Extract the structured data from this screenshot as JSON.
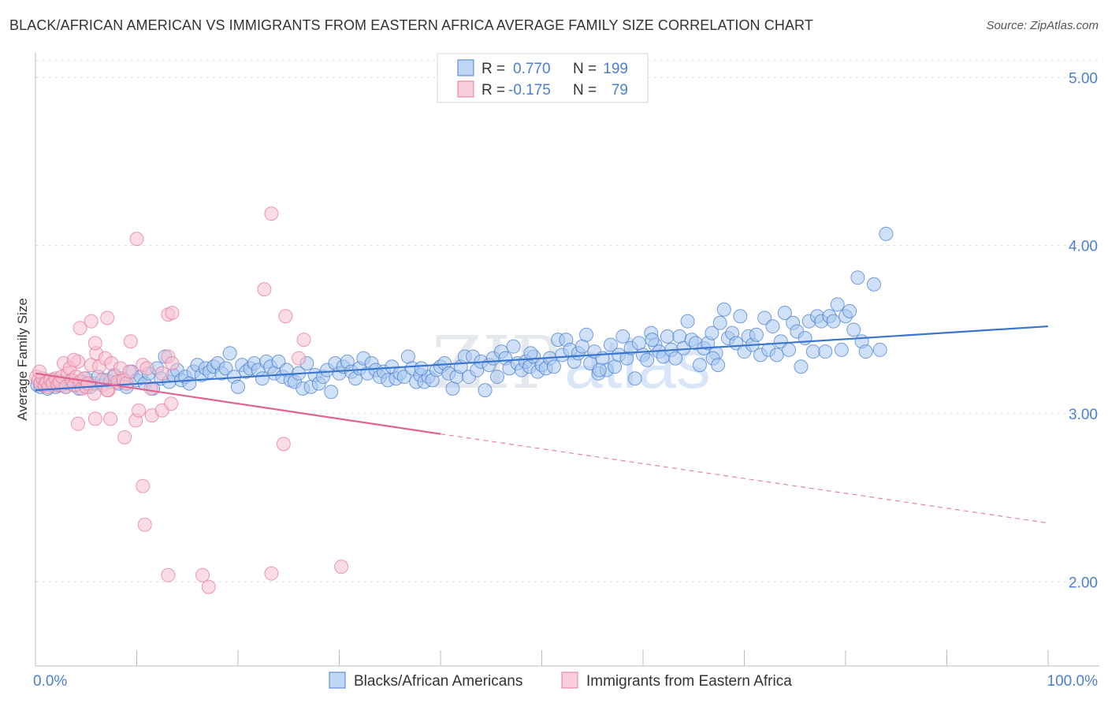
{
  "title": "BLACK/AFRICAN AMERICAN VS IMMIGRANTS FROM EASTERN AFRICA AVERAGE FAMILY SIZE CORRELATION CHART",
  "source": "Source: ZipAtlas.com",
  "watermark": {
    "zip": "ZIP",
    "atlas": "atlas"
  },
  "colors": {
    "blue": "#4a7fd0",
    "blue_fill": "#a9c8f0",
    "blue_line": "#3a76cf",
    "pink": "#e67a9e",
    "pink_fill": "#f6bfd0",
    "pink_line": "#e0648f",
    "grid": "#dddddd",
    "axis": "#bbbbbb"
  },
  "legend": {
    "rows": [
      {
        "r_label": "R =",
        "r_value": "0.770",
        "n_label": "N =",
        "n_value": "199"
      },
      {
        "r_label": "R =",
        "r_value": "-0.175",
        "n_label": "N =",
        "n_value": "79"
      }
    ]
  },
  "chart_data": {
    "type": "scatter",
    "xlabel": "",
    "ylabel": "Average Family Size",
    "xlim": [
      0,
      100
    ],
    "ylim": [
      1.5,
      5.1
    ],
    "x_tick_labels": [
      "0.0%",
      "100.0%"
    ],
    "y_ticks": [
      2.0,
      3.0,
      4.0,
      5.0
    ],
    "y_tick_labels": [
      "2.00",
      "3.00",
      "4.00",
      "5.00"
    ],
    "grid": "horizontal dashed",
    "legend_position": "top-center",
    "series": [
      {
        "name": "Blacks/African Americans",
        "color": "blue",
        "trend": {
          "x": [
            0,
            100
          ],
          "y": [
            3.14,
            3.52
          ],
          "style": "solid"
        },
        "points": [
          [
            0.2,
            3.17
          ],
          [
            0.5,
            3.16
          ],
          [
            0.8,
            3.18
          ],
          [
            1.0,
            3.19
          ],
          [
            1.2,
            3.15
          ],
          [
            1.5,
            3.17
          ],
          [
            1.8,
            3.2
          ],
          [
            2.0,
            3.16
          ],
          [
            2.3,
            3.18
          ],
          [
            2.5,
            3.17
          ],
          [
            2.8,
            3.19
          ],
          [
            3.0,
            3.16
          ],
          [
            3.3,
            3.18
          ],
          [
            3.6,
            3.2
          ],
          [
            4.0,
            3.17
          ],
          [
            4.3,
            3.15
          ],
          [
            4.7,
            3.19
          ],
          [
            5.0,
            3.21
          ],
          [
            5.4,
            3.16
          ],
          [
            5.8,
            3.18
          ],
          [
            6.2,
            3.22
          ],
          [
            6.6,
            3.17
          ],
          [
            7.0,
            3.2
          ],
          [
            7.4,
            3.19
          ],
          [
            7.8,
            3.23
          ],
          [
            8.2,
            3.18
          ],
          [
            8.6,
            3.21
          ],
          [
            9.0,
            3.16
          ],
          [
            9.5,
            3.25
          ],
          [
            10.0,
            3.2
          ],
          [
            10.4,
            3.22
          ],
          [
            10.8,
            3.18
          ],
          [
            11.2,
            3.24
          ],
          [
            11.6,
            3.15
          ],
          [
            12.0,
            3.27
          ],
          [
            12.4,
            3.21
          ],
          [
            12.8,
            3.34
          ],
          [
            13.2,
            3.19
          ],
          [
            13.6,
            3.23
          ],
          [
            14.0,
            3.26
          ],
          [
            14.4,
            3.2
          ],
          [
            14.8,
            3.22
          ],
          [
            15.2,
            3.18
          ],
          [
            15.6,
            3.25
          ],
          [
            16.0,
            3.29
          ],
          [
            16.4,
            3.23
          ],
          [
            16.8,
            3.27
          ],
          [
            17.2,
            3.25
          ],
          [
            17.6,
            3.28
          ],
          [
            18.0,
            3.3
          ],
          [
            18.4,
            3.24
          ],
          [
            18.8,
            3.27
          ],
          [
            19.2,
            3.36
          ],
          [
            19.6,
            3.22
          ],
          [
            20.0,
            3.16
          ],
          [
            20.4,
            3.29
          ],
          [
            20.8,
            3.25
          ],
          [
            21.2,
            3.27
          ],
          [
            21.6,
            3.3
          ],
          [
            22.0,
            3.26
          ],
          [
            22.4,
            3.21
          ],
          [
            22.8,
            3.31
          ],
          [
            23.2,
            3.28
          ],
          [
            23.6,
            3.24
          ],
          [
            24.0,
            3.31
          ],
          [
            24.4,
            3.22
          ],
          [
            24.8,
            3.26
          ],
          [
            25.2,
            3.2
          ],
          [
            25.6,
            3.19
          ],
          [
            26.0,
            3.24
          ],
          [
            26.4,
            3.15
          ],
          [
            26.8,
            3.3
          ],
          [
            27.2,
            3.16
          ],
          [
            27.6,
            3.23
          ],
          [
            28.0,
            3.18
          ],
          [
            28.4,
            3.22
          ],
          [
            28.8,
            3.26
          ],
          [
            29.2,
            3.13
          ],
          [
            29.6,
            3.3
          ],
          [
            30.0,
            3.24
          ],
          [
            30.4,
            3.28
          ],
          [
            30.8,
            3.31
          ],
          [
            31.2,
            3.25
          ],
          [
            31.6,
            3.21
          ],
          [
            32.0,
            3.27
          ],
          [
            32.4,
            3.33
          ],
          [
            32.8,
            3.24
          ],
          [
            33.2,
            3.3
          ],
          [
            33.6,
            3.26
          ],
          [
            34.0,
            3.22
          ],
          [
            34.4,
            3.25
          ],
          [
            34.8,
            3.2
          ],
          [
            35.2,
            3.28
          ],
          [
            35.6,
            3.21
          ],
          [
            36.0,
            3.24
          ],
          [
            36.4,
            3.22
          ],
          [
            36.8,
            3.34
          ],
          [
            37.2,
            3.27
          ],
          [
            37.6,
            3.19
          ],
          [
            38.0,
            3.23
          ],
          [
            38.4,
            3.19
          ],
          [
            38.8,
            3.22
          ],
          [
            39.2,
            3.2
          ],
          [
            39.6,
            3.26
          ],
          [
            40.0,
            3.28
          ],
          [
            40.4,
            3.3
          ],
          [
            40.8,
            3.24
          ],
          [
            41.2,
            3.15
          ],
          [
            41.6,
            3.22
          ],
          [
            42.0,
            3.28
          ],
          [
            42.4,
            3.34
          ],
          [
            42.8,
            3.22
          ],
          [
            43.2,
            3.34
          ],
          [
            43.6,
            3.26
          ],
          [
            44.0,
            3.31
          ],
          [
            44.4,
            3.14
          ],
          [
            44.8,
            3.29
          ],
          [
            45.2,
            3.33
          ],
          [
            45.6,
            3.22
          ],
          [
            46.0,
            3.37
          ],
          [
            46.4,
            3.33
          ],
          [
            46.8,
            3.27
          ],
          [
            47.2,
            3.4
          ],
          [
            47.6,
            3.3
          ],
          [
            48.0,
            3.26
          ],
          [
            48.4,
            3.31
          ],
          [
            48.8,
            3.28
          ],
          [
            49.2,
            3.34
          ],
          [
            49.6,
            3.25
          ],
          [
            50.0,
            3.29
          ],
          [
            50.4,
            3.27
          ],
          [
            50.8,
            3.33
          ],
          [
            51.2,
            3.28
          ],
          [
            51.6,
            3.44
          ],
          [
            52.0,
            3.35
          ],
          [
            52.4,
            3.44
          ],
          [
            52.8,
            3.38
          ],
          [
            53.2,
            3.31
          ],
          [
            53.6,
            3.36
          ],
          [
            54.0,
            3.4
          ],
          [
            54.4,
            3.47
          ],
          [
            54.8,
            3.3
          ],
          [
            55.2,
            3.37
          ],
          [
            55.6,
            3.24
          ],
          [
            56.0,
            3.33
          ],
          [
            56.4,
            3.26
          ],
          [
            56.8,
            3.41
          ],
          [
            57.2,
            3.28
          ],
          [
            57.6,
            3.35
          ],
          [
            58.0,
            3.46
          ],
          [
            58.4,
            3.33
          ],
          [
            58.8,
            3.39
          ],
          [
            59.2,
            3.21
          ],
          [
            59.6,
            3.42
          ],
          [
            60.0,
            3.35
          ],
          [
            60.4,
            3.32
          ],
          [
            60.8,
            3.48
          ],
          [
            61.2,
            3.41
          ],
          [
            61.6,
            3.37
          ],
          [
            62.0,
            3.34
          ],
          [
            62.4,
            3.46
          ],
          [
            62.8,
            3.38
          ],
          [
            63.2,
            3.33
          ],
          [
            63.6,
            3.46
          ],
          [
            64.0,
            3.39
          ],
          [
            64.4,
            3.55
          ],
          [
            64.8,
            3.44
          ],
          [
            65.2,
            3.42
          ],
          [
            65.6,
            3.29
          ],
          [
            66.0,
            3.39
          ],
          [
            66.4,
            3.42
          ],
          [
            66.8,
            3.48
          ],
          [
            67.2,
            3.36
          ],
          [
            67.6,
            3.54
          ],
          [
            68.0,
            3.62
          ],
          [
            68.4,
            3.45
          ],
          [
            68.8,
            3.48
          ],
          [
            69.2,
            3.42
          ],
          [
            69.6,
            3.58
          ],
          [
            70.0,
            3.37
          ],
          [
            70.4,
            3.46
          ],
          [
            70.8,
            3.41
          ],
          [
            71.2,
            3.47
          ],
          [
            71.6,
            3.35
          ],
          [
            72.0,
            3.57
          ],
          [
            72.4,
            3.38
          ],
          [
            72.8,
            3.52
          ],
          [
            73.2,
            3.35
          ],
          [
            73.6,
            3.43
          ],
          [
            74.0,
            3.6
          ],
          [
            74.4,
            3.38
          ],
          [
            74.8,
            3.54
          ],
          [
            75.2,
            3.49
          ],
          [
            75.6,
            3.28
          ],
          [
            76.0,
            3.45
          ],
          [
            76.4,
            3.55
          ],
          [
            76.8,
            3.37
          ],
          [
            77.2,
            3.58
          ],
          [
            77.6,
            3.55
          ],
          [
            78.0,
            3.37
          ],
          [
            78.4,
            3.58
          ],
          [
            78.8,
            3.55
          ],
          [
            79.2,
            3.65
          ],
          [
            79.6,
            3.38
          ],
          [
            80.0,
            3.58
          ],
          [
            80.4,
            3.61
          ],
          [
            80.8,
            3.5
          ],
          [
            81.2,
            3.81
          ],
          [
            81.6,
            3.43
          ],
          [
            82.0,
            3.37
          ],
          [
            82.8,
            3.77
          ],
          [
            84.0,
            4.07
          ],
          [
            83.4,
            3.38
          ],
          [
            60.9,
            3.44
          ],
          [
            66.9,
            3.33
          ],
          [
            67.4,
            3.29
          ],
          [
            38.1,
            3.27
          ],
          [
            55.7,
            3.26
          ],
          [
            48.9,
            3.36
          ]
        ]
      },
      {
        "name": "Immigrants from Eastern Africa",
        "color": "pink",
        "trend": {
          "x": [
            0,
            40
          ],
          "y": [
            3.24,
            2.88
          ],
          "style": "solid",
          "extension": {
            "x": [
              40,
              100
            ],
            "y": [
              2.88,
              2.35
            ],
            "style": "dashed"
          }
        },
        "points": [
          [
            0.1,
            3.22
          ],
          [
            0.3,
            3.2
          ],
          [
            0.5,
            3.18
          ],
          [
            0.7,
            3.21
          ],
          [
            0.9,
            3.17
          ],
          [
            1.1,
            3.19
          ],
          [
            1.3,
            3.16
          ],
          [
            1.5,
            3.2
          ],
          [
            1.7,
            3.18
          ],
          [
            2.0,
            3.21
          ],
          [
            2.2,
            3.17
          ],
          [
            2.4,
            3.19
          ],
          [
            2.6,
            3.22
          ],
          [
            2.8,
            3.3
          ],
          [
            3.0,
            3.16
          ],
          [
            3.2,
            3.24
          ],
          [
            3.4,
            3.27
          ],
          [
            3.6,
            3.2
          ],
          [
            3.8,
            3.17
          ],
          [
            4.0,
            3.22
          ],
          [
            4.2,
            3.31
          ],
          [
            4.4,
            3.19
          ],
          [
            4.6,
            3.15
          ],
          [
            4.8,
            3.21
          ],
          [
            5.0,
            3.16
          ],
          [
            5.2,
            3.18
          ],
          [
            5.5,
            3.29
          ],
          [
            5.8,
            3.12
          ],
          [
            6.0,
            3.36
          ],
          [
            6.3,
            3.28
          ],
          [
            6.6,
            3.2
          ],
          [
            6.9,
            3.33
          ],
          [
            7.2,
            3.14
          ],
          [
            7.5,
            3.3
          ],
          [
            7.8,
            3.22
          ],
          [
            8.1,
            3.19
          ],
          [
            8.4,
            3.27
          ],
          [
            8.7,
            3.2
          ],
          [
            9.0,
            3.18
          ],
          [
            9.3,
            3.25
          ],
          [
            4.4,
            3.51
          ],
          [
            5.5,
            3.55
          ],
          [
            7.1,
            3.57
          ],
          [
            5.9,
            3.42
          ],
          [
            9.4,
            3.43
          ],
          [
            10.6,
            3.29
          ],
          [
            12.5,
            3.24
          ],
          [
            13.1,
            3.34
          ],
          [
            11.4,
            3.15
          ],
          [
            13.5,
            3.3
          ],
          [
            4.2,
            2.94
          ],
          [
            5.9,
            2.97
          ],
          [
            7.4,
            2.97
          ],
          [
            8.8,
            2.86
          ],
          [
            9.9,
            2.96
          ],
          [
            10.2,
            3.02
          ],
          [
            11.0,
            3.27
          ],
          [
            11.5,
            2.99
          ],
          [
            12.5,
            3.02
          ],
          [
            13.4,
            3.06
          ],
          [
            10.0,
            4.04
          ],
          [
            13.1,
            3.59
          ],
          [
            13.5,
            3.6
          ],
          [
            22.6,
            3.74
          ],
          [
            23.3,
            4.19
          ],
          [
            24.7,
            3.58
          ],
          [
            26.5,
            3.44
          ],
          [
            26.0,
            3.33
          ],
          [
            24.5,
            2.82
          ],
          [
            10.6,
            2.57
          ],
          [
            10.8,
            2.34
          ],
          [
            13.1,
            2.04
          ],
          [
            16.5,
            2.04
          ],
          [
            17.1,
            1.97
          ],
          [
            23.3,
            2.05
          ],
          [
            30.2,
            2.09
          ],
          [
            7.1,
            3.14
          ],
          [
            0.4,
            3.25
          ],
          [
            3.8,
            3.32
          ]
        ]
      }
    ]
  }
}
